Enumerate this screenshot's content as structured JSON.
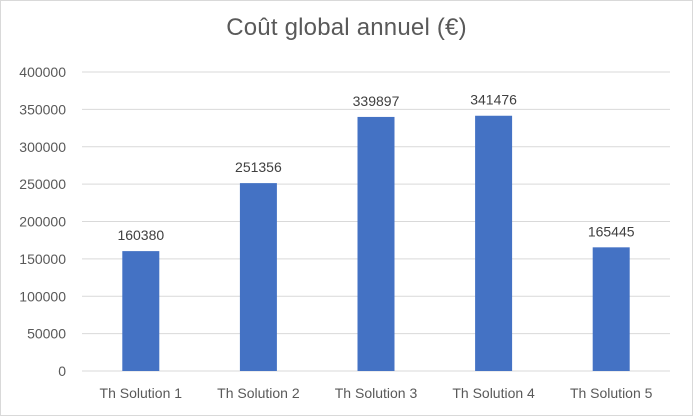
{
  "chart_data": {
    "type": "bar",
    "title": "Coût global annuel (€)",
    "categories": [
      "Th Solution 1",
      "Th Solution 2",
      "Th Solution 3",
      "Th Solution 4",
      "Th Solution 5"
    ],
    "values": [
      160380,
      251356,
      339897,
      341476,
      165445
    ],
    "data_labels": [
      "160380",
      "251356",
      "339897",
      "341476",
      "165445"
    ],
    "ylim": [
      0,
      400000
    ],
    "yticks": [
      0,
      50000,
      100000,
      150000,
      200000,
      250000,
      300000,
      350000,
      400000
    ],
    "ytick_labels": [
      "0",
      "50000",
      "100000",
      "150000",
      "200000",
      "250000",
      "300000",
      "350000",
      "400000"
    ],
    "grid": true,
    "legend": "none",
    "bar_color": "#4472c4",
    "grid_color": "#d9d9d9"
  }
}
